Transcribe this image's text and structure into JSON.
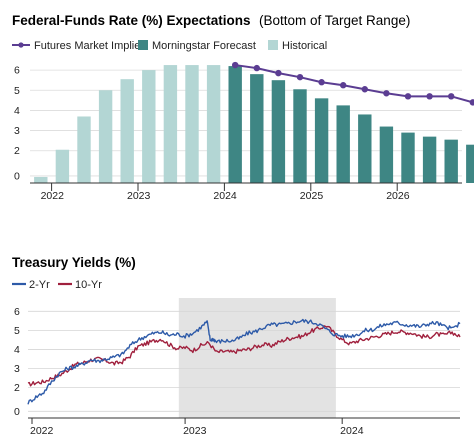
{
  "chart_data": [
    {
      "type": "bar",
      "title": "Federal-Funds Rate (%) Expectations",
      "subtitle": "(Bottom of Target Range)",
      "legend": {
        "placement": "top-left",
        "entries": [
          {
            "name": "Futures Market Implied",
            "kind": "line-dot",
            "color": "#5b3d92"
          },
          {
            "name": "Morningstar Forecast",
            "kind": "box",
            "color": "#3e8684"
          },
          {
            "name": "Historical",
            "kind": "box",
            "color": "#b3d6d4"
          }
        ]
      },
      "ylim": [
        0,
        6.3
      ],
      "y_ticks": [
        "0",
        "2",
        "3",
        "4",
        "5",
        "6"
      ],
      "y_tick_values": [
        0.35,
        1.6,
        2.6,
        3.6,
        4.6,
        5.6
      ],
      "x_ticks": [
        {
          "label": "2022",
          "x": 0.5
        },
        {
          "label": "2023",
          "x": 4.5
        },
        {
          "label": "2024",
          "x": 8.5
        },
        {
          "label": "2025",
          "x": 12.5
        },
        {
          "label": "2026",
          "x": 16.5
        }
      ],
      "gridlines": true,
      "bars": {
        "n_slots": 20,
        "historical": [
          0.3,
          1.65,
          3.3,
          4.6,
          5.15,
          5.6,
          5.85,
          5.85,
          5.85
        ],
        "forecast": [
          5.8,
          5.4,
          5.1,
          4.65,
          4.2,
          3.85,
          3.4,
          2.8,
          2.5,
          2.3,
          2.15,
          1.9
        ]
      },
      "series": [
        {
          "name": "Futures Market Implied",
          "x_start": 9,
          "values": [
            5.85,
            5.7,
            5.45,
            5.25,
            5.0,
            4.85,
            4.65,
            4.45,
            4.3,
            4.3,
            4.3,
            4.0,
            4.0,
            4.0
          ]
        }
      ]
    },
    {
      "type": "line",
      "title": "Treasury Yields (%)",
      "legend": {
        "placement": "top-left",
        "entries": [
          {
            "name": "2-Yr",
            "color": "#2d5aa8"
          },
          {
            "name": "10-Yr",
            "color": "#a0203d"
          }
        ]
      },
      "ylim": [
        0,
        6.3
      ],
      "y_ticks": [
        "0",
        "2",
        "3",
        "4",
        "5",
        "6"
      ],
      "y_tick_values": [
        0.35,
        1.6,
        2.6,
        3.6,
        4.6,
        5.6
      ],
      "x_ticks": [
        {
          "label": "2022",
          "x": 2022.0
        },
        {
          "label": "2023",
          "x": 2023.0
        },
        {
          "label": "2024",
          "x": 2024.0
        }
      ],
      "xlim": [
        2022.0,
        2024.75
      ],
      "shaded_region": [
        2022.96,
        2023.96
      ],
      "gridlines": true,
      "series": [
        {
          "name": "2-Yr",
          "color": "#2d5aa8",
          "x": [
            2022.0,
            2022.05,
            2022.1,
            2022.15,
            2022.2,
            2022.25,
            2022.3,
            2022.35,
            2022.4,
            2022.45,
            2022.5,
            2022.55,
            2022.6,
            2022.65,
            2022.7,
            2022.75,
            2022.8,
            2022.85,
            2022.9,
            2022.95,
            2023.0,
            2023.05,
            2023.1,
            2023.14,
            2023.16,
            2023.18,
            2023.2,
            2023.25,
            2023.3,
            2023.35,
            2023.4,
            2023.45,
            2023.5,
            2023.55,
            2023.6,
            2023.65,
            2023.7,
            2023.75,
            2023.8,
            2023.85,
            2023.9,
            2023.95,
            2024.0,
            2024.05,
            2024.1,
            2024.15,
            2024.2,
            2024.25,
            2024.3,
            2024.35,
            2024.4,
            2024.45,
            2024.5,
            2024.55,
            2024.6,
            2024.65,
            2024.7,
            2024.75
          ],
          "values": [
            0.8,
            1.1,
            1.35,
            1.9,
            2.35,
            2.6,
            2.7,
            2.85,
            3.05,
            3.0,
            3.1,
            3.2,
            3.35,
            3.8,
            4.1,
            4.3,
            4.45,
            4.5,
            4.35,
            4.4,
            4.3,
            4.45,
            4.75,
            5.05,
            4.1,
            4.15,
            4.0,
            4.05,
            4.05,
            4.2,
            4.45,
            4.55,
            4.75,
            4.9,
            4.9,
            4.95,
            5.05,
            5.1,
            5.05,
            4.95,
            4.65,
            4.4,
            4.3,
            4.3,
            4.4,
            4.6,
            4.65,
            4.85,
            4.95,
            5.0,
            4.9,
            4.85,
            4.8,
            4.95,
            5.0,
            4.8,
            4.7,
            4.95
          ]
        },
        {
          "name": "10-Yr",
          "color": "#a0203d",
          "x": [
            2022.0,
            2022.05,
            2022.1,
            2022.15,
            2022.2,
            2022.25,
            2022.3,
            2022.35,
            2022.4,
            2022.45,
            2022.5,
            2022.55,
            2022.6,
            2022.65,
            2022.7,
            2022.75,
            2022.8,
            2022.85,
            2022.9,
            2022.95,
            2023.0,
            2023.05,
            2023.1,
            2023.15,
            2023.2,
            2023.25,
            2023.3,
            2023.35,
            2023.4,
            2023.45,
            2023.5,
            2023.55,
            2023.6,
            2023.65,
            2023.7,
            2023.75,
            2023.8,
            2023.85,
            2023.9,
            2023.95,
            2024.0,
            2024.05,
            2024.1,
            2024.15,
            2024.2,
            2024.25,
            2024.3,
            2024.35,
            2024.4,
            2024.45,
            2024.5,
            2024.55,
            2024.6,
            2024.65,
            2024.7,
            2024.75
          ],
          "values": [
            1.75,
            1.85,
            1.9,
            2.1,
            2.25,
            2.5,
            2.8,
            2.9,
            3.05,
            3.1,
            3.0,
            2.85,
            2.95,
            3.25,
            3.75,
            3.9,
            4.05,
            4.15,
            3.85,
            3.65,
            3.7,
            3.55,
            3.8,
            3.95,
            3.45,
            3.5,
            3.45,
            3.55,
            3.6,
            3.75,
            3.85,
            3.8,
            4.0,
            4.15,
            4.25,
            4.3,
            4.55,
            4.7,
            4.85,
            4.45,
            4.1,
            3.9,
            4.05,
            4.15,
            4.25,
            4.35,
            4.45,
            4.55,
            4.5,
            4.45,
            4.3,
            4.25,
            4.4,
            4.35,
            4.5,
            4.25
          ]
        }
      ]
    }
  ]
}
